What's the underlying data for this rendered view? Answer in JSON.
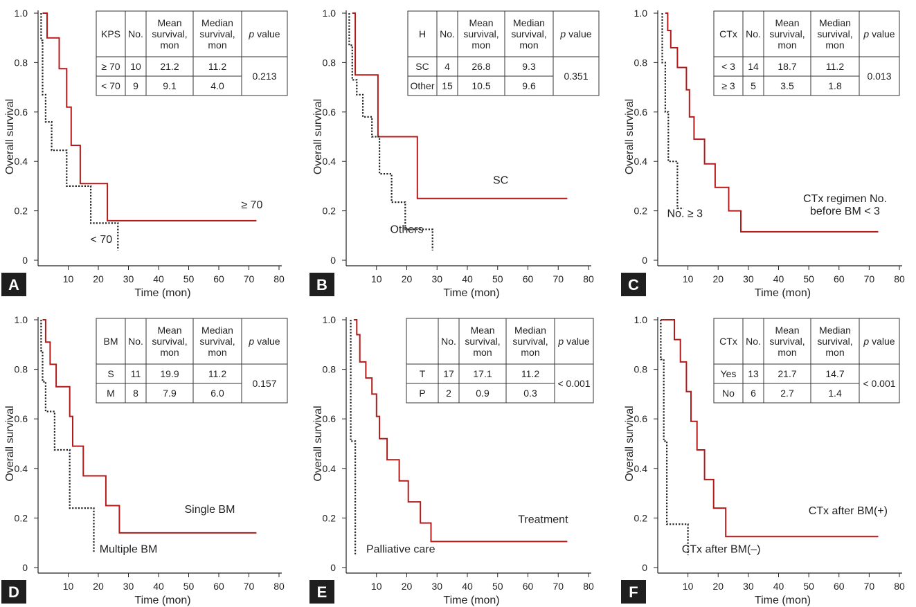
{
  "chart_data": [
    {
      "type": "line",
      "panel_label": "A",
      "xlabel": "Time (mon)",
      "ylabel": "Overall survival",
      "xlim": [
        0,
        80
      ],
      "ylim": [
        0,
        1.0
      ],
      "xticks": [
        "10",
        "20",
        "30",
        "40",
        "50",
        "60",
        "70",
        "80"
      ],
      "yticks": [
        "0",
        "0.2",
        "0.4",
        "0.6",
        "0.8",
        "1.0"
      ],
      "series": [
        {
          "style": "solid",
          "color": "#b31b1b",
          "x": [
            1.5,
            1.5,
            3,
            3,
            7,
            7,
            9.5,
            9.5,
            11,
            11,
            14,
            14,
            23,
            23,
            72.5
          ],
          "y": [
            1.0,
            1.0,
            1.0,
            0.9,
            0.9,
            0.775,
            0.775,
            0.62,
            0.62,
            0.465,
            0.465,
            0.31,
            0.31,
            0.16,
            0.16
          ]
        },
        {
          "style": "dotted",
          "color": "#222222",
          "x": [
            1,
            1,
            1.5,
            1.5,
            2.5,
            2.5,
            4.5,
            4.5,
            9.5,
            9.5,
            17.5,
            17.5,
            26.5,
            26.5
          ],
          "y": [
            1.0,
            0.89,
            0.89,
            0.67,
            0.67,
            0.56,
            0.56,
            0.445,
            0.445,
            0.3,
            0.3,
            0.15,
            0.15,
            0.04
          ]
        }
      ],
      "annotations": [
        {
          "text": "≥ 70",
          "x": 71,
          "y": 0.21
        },
        {
          "text": "< 70",
          "x": 21,
          "y": 0.07
        }
      ],
      "table": {
        "headers": [
          "KPS",
          "No.",
          "Mean survival, mon",
          "Median survival, mon",
          "p value"
        ],
        "rows": [
          [
            "≥ 70",
            "10",
            "21.2",
            "11.2"
          ],
          [
            "< 70",
            "9",
            "9.1",
            "4.0"
          ]
        ],
        "p_value": "0.213"
      }
    },
    {
      "type": "line",
      "panel_label": "B",
      "xlabel": "Time (mon)",
      "ylabel": "Overall survival",
      "xlim": [
        0,
        80
      ],
      "ylim": [
        0,
        1.0
      ],
      "xticks": [
        "10",
        "20",
        "30",
        "40",
        "50",
        "60",
        "70",
        "80"
      ],
      "yticks": [
        "0",
        "0.2",
        "0.4",
        "0.6",
        "0.8",
        "1.0"
      ],
      "series": [
        {
          "style": "solid",
          "color": "#b31b1b",
          "x": [
            2,
            2,
            3,
            3,
            10.5,
            10.5,
            23.5,
            23.5,
            73
          ],
          "y": [
            1.0,
            1.0,
            1.0,
            0.75,
            0.75,
            0.5,
            0.5,
            0.25,
            0.25
          ]
        },
        {
          "style": "dotted",
          "color": "#222222",
          "x": [
            1,
            1,
            2,
            2,
            3.5,
            3.5,
            5.5,
            5.5,
            8.5,
            8.5,
            11,
            11,
            15,
            15,
            19.5,
            19.5,
            28.5,
            28.5
          ],
          "y": [
            1.0,
            0.87,
            0.87,
            0.73,
            0.73,
            0.67,
            0.67,
            0.58,
            0.58,
            0.5,
            0.5,
            0.35,
            0.35,
            0.235,
            0.235,
            0.125,
            0.125,
            0.04
          ]
        }
      ],
      "annotations": [
        {
          "text": "SC",
          "x": 51,
          "y": 0.31
        },
        {
          "text": "Others",
          "x": 20,
          "y": 0.11
        }
      ],
      "table": {
        "headers": [
          "H",
          "No.",
          "Mean survival, mon",
          "Median survival, mon",
          "p value"
        ],
        "rows": [
          [
            "SC",
            "4",
            "26.8",
            "9.3"
          ],
          [
            "Other",
            "15",
            "10.5",
            "9.6"
          ]
        ],
        "p_value": "0.351"
      }
    },
    {
      "type": "line",
      "panel_label": "C",
      "xlabel": "Time (mon)",
      "ylabel": "Overall survival",
      "xlim": [
        0,
        80
      ],
      "ylim": [
        0,
        1.0
      ],
      "xticks": [
        "10",
        "20",
        "30",
        "40",
        "50",
        "60",
        "70",
        "80"
      ],
      "yticks": [
        "0",
        "0.2",
        "0.4",
        "0.6",
        "0.8",
        "1.0"
      ],
      "series": [
        {
          "style": "solid",
          "color": "#b31b1b",
          "x": [
            2.5,
            2.5,
            3.3,
            3.3,
            4.3,
            4.3,
            6.5,
            6.5,
            9.5,
            9.5,
            10.5,
            10.5,
            12,
            12,
            15.5,
            15.5,
            19,
            19,
            23.5,
            23.5,
            27.5,
            27.5,
            73
          ],
          "y": [
            1.0,
            1.0,
            1.0,
            0.93,
            0.93,
            0.86,
            0.86,
            0.78,
            0.78,
            0.69,
            0.69,
            0.58,
            0.58,
            0.49,
            0.49,
            0.39,
            0.39,
            0.295,
            0.295,
            0.2,
            0.2,
            0.115,
            0.115
          ]
        },
        {
          "style": "dotted",
          "color": "#222222",
          "x": [
            1.5,
            1.5,
            2.5,
            2.5,
            3.5,
            3.5,
            6.5,
            6.5,
            8.5
          ],
          "y": [
            1.0,
            0.8,
            0.8,
            0.6,
            0.6,
            0.4,
            0.4,
            0.21,
            0.21
          ]
        }
      ],
      "annotations": [
        {
          "text": "No. ≥ 3",
          "x": 9,
          "y": 0.175
        },
        {
          "text": "CTx regimen No.",
          "x": 62,
          "y": 0.235
        },
        {
          "text": "before BM < 3",
          "x": 62,
          "y": 0.185
        }
      ],
      "table": {
        "headers": [
          "CTx",
          "No.",
          "Mean survival, mon",
          "Median survival, mon",
          "p value"
        ],
        "rows": [
          [
            "< 3",
            "14",
            "18.7",
            "11.2"
          ],
          [
            "≥ 3",
            "5",
            "3.5",
            "1.8"
          ]
        ],
        "p_value": "0.013"
      }
    },
    {
      "type": "line",
      "panel_label": "D",
      "xlabel": "Time (mon)",
      "ylabel": "Overall survival",
      "xlim": [
        0,
        80
      ],
      "ylim": [
        0,
        1.0
      ],
      "xticks": [
        "10",
        "20",
        "30",
        "40",
        "50",
        "60",
        "70",
        "80"
      ],
      "yticks": [
        "0",
        "0.2",
        "0.4",
        "0.6",
        "0.8",
        "1.0"
      ],
      "series": [
        {
          "style": "solid",
          "color": "#b31b1b",
          "x": [
            1.5,
            1.5,
            2.5,
            2.5,
            4,
            4,
            6,
            6,
            10.5,
            10.5,
            11.5,
            11.5,
            15,
            15,
            22.5,
            22.5,
            27,
            27,
            72.5
          ],
          "y": [
            1.0,
            1.0,
            1.0,
            0.91,
            0.91,
            0.82,
            0.82,
            0.73,
            0.73,
            0.61,
            0.61,
            0.49,
            0.49,
            0.37,
            0.37,
            0.25,
            0.25,
            0.14,
            0.14
          ]
        },
        {
          "style": "dotted",
          "color": "#222222",
          "x": [
            1,
            1,
            1.5,
            1.5,
            2.5,
            2.5,
            5.5,
            5.5,
            10.5,
            10.5,
            18.5,
            18.5
          ],
          "y": [
            1.0,
            0.875,
            0.875,
            0.75,
            0.75,
            0.63,
            0.63,
            0.475,
            0.475,
            0.24,
            0.24,
            0.06
          ]
        }
      ],
      "annotations": [
        {
          "text": "Single BM",
          "x": 57,
          "y": 0.22
        },
        {
          "text": "Multiple BM",
          "x": 30,
          "y": 0.06
        }
      ],
      "table": {
        "headers": [
          "BM",
          "No.",
          "Mean survival, mon",
          "Median survival, mon",
          "p value"
        ],
        "rows": [
          [
            "S",
            "11",
            "19.9",
            "11.2"
          ],
          [
            "M",
            "8",
            "7.9",
            "6.0"
          ]
        ],
        "p_value": "0.157"
      }
    },
    {
      "type": "line",
      "panel_label": "E",
      "xlabel": "Time (mon)",
      "ylabel": "Overall survival",
      "xlim": [
        0,
        80
      ],
      "ylim": [
        0,
        1.0
      ],
      "xticks": [
        "10",
        "20",
        "30",
        "40",
        "50",
        "60",
        "70",
        "80"
      ],
      "yticks": [
        "0",
        "0.2",
        "0.4",
        "0.6",
        "0.8",
        "1.0"
      ],
      "series": [
        {
          "style": "solid",
          "color": "#b31b1b",
          "x": [
            2.5,
            2.5,
            3.5,
            3.5,
            4.5,
            4.5,
            6.5,
            6.5,
            8.5,
            8.5,
            10,
            10,
            11,
            11,
            13.5,
            13.5,
            17.5,
            17.5,
            20.5,
            20.5,
            24.5,
            24.5,
            28,
            28,
            73
          ],
          "y": [
            1.0,
            1.0,
            1.0,
            0.94,
            0.94,
            0.83,
            0.83,
            0.765,
            0.765,
            0.7,
            0.7,
            0.61,
            0.61,
            0.52,
            0.52,
            0.435,
            0.435,
            0.35,
            0.35,
            0.265,
            0.265,
            0.18,
            0.18,
            0.105,
            0.105
          ]
        },
        {
          "style": "dotted",
          "color": "#222222",
          "x": [
            1.5,
            1.5,
            3,
            3
          ],
          "y": [
            1.0,
            0.51,
            0.51,
            0.05
          ]
        }
      ],
      "annotations": [
        {
          "text": "Treatment",
          "x": 65,
          "y": 0.18
        },
        {
          "text": "Palliative care",
          "x": 18,
          "y": 0.06
        }
      ],
      "table": {
        "headers": [
          "",
          "No.",
          "Mean survival, mon",
          "Median survival, mon",
          "p value"
        ],
        "rows": [
          [
            "T",
            "17",
            "17.1",
            "11.2"
          ],
          [
            "P",
            "2",
            "0.9",
            "0.3"
          ]
        ],
        "p_value": "< 0.001"
      }
    },
    {
      "type": "line",
      "panel_label": "F",
      "xlabel": "Time (mon)",
      "ylabel": "Overall survival",
      "xlim": [
        0,
        80
      ],
      "ylim": [
        0,
        1.0
      ],
      "xticks": [
        "10",
        "20",
        "30",
        "40",
        "50",
        "60",
        "70",
        "80"
      ],
      "yticks": [
        "0",
        "0.2",
        "0.4",
        "0.6",
        "0.8",
        "1.0"
      ],
      "series": [
        {
          "style": "solid",
          "color": "#b31b1b",
          "x": [
            1,
            1,
            5.5,
            5.5,
            7.5,
            7.5,
            9.5,
            9.5,
            11,
            11,
            13,
            13,
            15.5,
            15.5,
            18.5,
            18.5,
            22.5,
            22.5,
            27,
            27,
            73
          ],
          "y": [
            1.0,
            1.0,
            1.0,
            0.92,
            0.92,
            0.83,
            0.83,
            0.71,
            0.71,
            0.59,
            0.59,
            0.475,
            0.475,
            0.355,
            0.355,
            0.24,
            0.24,
            0.125,
            0.125,
            0.125,
            0.125
          ]
        },
        {
          "style": "dotted",
          "color": "#222222",
          "x": [
            1,
            1,
            2,
            2,
            3,
            3,
            10,
            10
          ],
          "y": [
            1.0,
            0.84,
            0.84,
            0.51,
            0.51,
            0.175,
            0.175,
            0.05
          ]
        }
      ],
      "annotations": [
        {
          "text": "CTx after BM(+)",
          "x": 63,
          "y": 0.215
        },
        {
          "text": "CTx after BM(–)",
          "x": 21,
          "y": 0.06
        }
      ],
      "table": {
        "headers": [
          "CTx",
          "No.",
          "Mean survival, mon",
          "Median survival, mon",
          "p value"
        ],
        "rows": [
          [
            "Yes",
            "13",
            "21.7",
            "14.7"
          ],
          [
            "No",
            "6",
            "2.7",
            "1.4"
          ]
        ],
        "p_value": "< 0.001"
      }
    }
  ]
}
